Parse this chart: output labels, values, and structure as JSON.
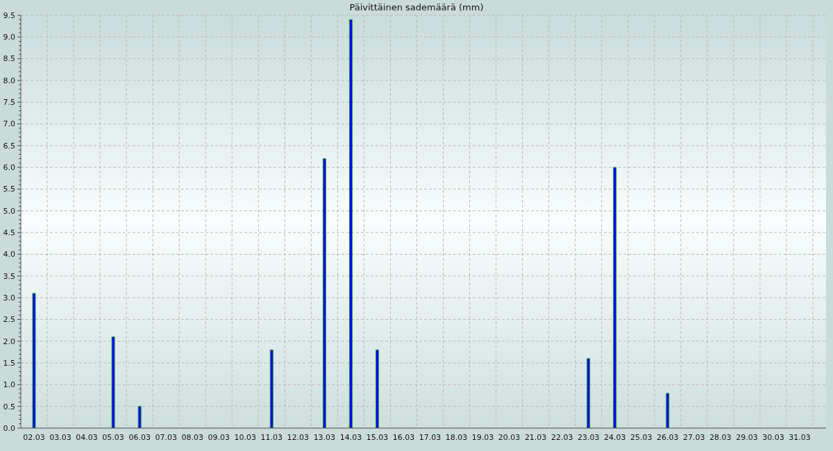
{
  "chart_data": {
    "type": "bar",
    "title": "Päivittäinen sademäärä (mm)",
    "categories": [
      "02.03",
      "03.03",
      "04.03",
      "05.03",
      "06.03",
      "07.03",
      "08.03",
      "09.03",
      "10.03",
      "11.03",
      "12.03",
      "13.03",
      "14.03",
      "15.03",
      "16.03",
      "17.03",
      "18.03",
      "19.03",
      "20.03",
      "21.03",
      "22.03",
      "23.03",
      "24.03",
      "25.03",
      "26.03",
      "27.03",
      "28.03",
      "29.03",
      "30.03",
      "31.03"
    ],
    "values": [
      3.1,
      0,
      0,
      2.1,
      0.5,
      0,
      0,
      0,
      0,
      1.8,
      0,
      6.2,
      9.4,
      1.8,
      0,
      0,
      0,
      0,
      0,
      0,
      0,
      1.6,
      6.0,
      0,
      0.8,
      0,
      0,
      0,
      0,
      0
    ],
    "color": "#0000ff",
    "ylim": [
      0,
      9.5
    ],
    "yticks": [
      {
        "value": 0,
        "label": "0.0"
      },
      {
        "value": 0.1,
        "label": null
      },
      {
        "value": 0.2,
        "label": null
      },
      {
        "value": 0.3,
        "label": null
      },
      {
        "value": 0.4,
        "label": null
      },
      {
        "value": 0.5,
        "label": "0.5"
      },
      {
        "value": 0.6,
        "label": null
      },
      {
        "value": 0.7,
        "label": null
      },
      {
        "value": 0.8,
        "label": null
      },
      {
        "value": 0.9,
        "label": null
      },
      {
        "value": 1,
        "label": "1.0"
      },
      {
        "value": 1.1,
        "label": null
      },
      {
        "value": 1.2,
        "label": null
      },
      {
        "value": 1.3,
        "label": null
      },
      {
        "value": 1.4,
        "label": null
      },
      {
        "value": 1.5,
        "label": "1.5"
      },
      {
        "value": 1.6,
        "label": null
      },
      {
        "value": 1.7,
        "label": null
      },
      {
        "value": 1.8,
        "label": null
      },
      {
        "value": 1.9,
        "label": null
      },
      {
        "value": 2,
        "label": "2.0"
      },
      {
        "value": 2.1,
        "label": null
      },
      {
        "value": 2.2,
        "label": null
      },
      {
        "value": 2.3,
        "label": null
      },
      {
        "value": 2.4,
        "label": null
      },
      {
        "value": 2.5,
        "label": "2.5"
      },
      {
        "value": 2.6,
        "label": null
      },
      {
        "value": 2.7,
        "label": null
      },
      {
        "value": 2.8,
        "label": null
      },
      {
        "value": 2.9,
        "label": null
      },
      {
        "value": 3,
        "label": "3.0"
      },
      {
        "value": 3.1,
        "label": null
      },
      {
        "value": 3.2,
        "label": null
      },
      {
        "value": 3.3,
        "label": null
      },
      {
        "value": 3.4,
        "label": null
      },
      {
        "value": 3.5,
        "label": "3.5"
      },
      {
        "value": 3.6,
        "label": null
      },
      {
        "value": 3.7,
        "label": null
      },
      {
        "value": 3.8,
        "label": null
      },
      {
        "value": 3.9,
        "label": null
      },
      {
        "value": 4,
        "label": "4.0"
      },
      {
        "value": 4.1,
        "label": null
      },
      {
        "value": 4.2,
        "label": null
      },
      {
        "value": 4.3,
        "label": null
      },
      {
        "value": 4.4,
        "label": null
      },
      {
        "value": 4.5,
        "label": "4.5"
      },
      {
        "value": 4.6,
        "label": null
      },
      {
        "value": 4.7,
        "label": null
      },
      {
        "value": 4.8,
        "label": null
      },
      {
        "value": 4.9,
        "label": null
      },
      {
        "value": 5,
        "label": "5.0"
      },
      {
        "value": 5.1,
        "label": null
      },
      {
        "value": 5.2,
        "label": null
      },
      {
        "value": 5.3,
        "label": null
      },
      {
        "value": 5.4,
        "label": null
      },
      {
        "value": 5.5,
        "label": "5.5"
      },
      {
        "value": 5.6,
        "label": null
      },
      {
        "value": 5.7,
        "label": null
      },
      {
        "value": 5.8,
        "label": null
      },
      {
        "value": 5.9,
        "label": null
      },
      {
        "value": 6,
        "label": "6.0"
      },
      {
        "value": 6.1,
        "label": null
      },
      {
        "value": 6.2,
        "label": null
      },
      {
        "value": 6.3,
        "label": null
      },
      {
        "value": 6.4,
        "label": null
      },
      {
        "value": 6.5,
        "label": "6.5"
      },
      {
        "value": 6.6,
        "label": null
      },
      {
        "value": 6.7,
        "label": null
      },
      {
        "value": 6.8,
        "label": null
      },
      {
        "value": 6.9,
        "label": null
      },
      {
        "value": 7,
        "label": "7.0"
      },
      {
        "value": 7.1,
        "label": null
      },
      {
        "value": 7.2,
        "label": null
      },
      {
        "value": 7.3,
        "label": null
      },
      {
        "value": 7.4,
        "label": null
      },
      {
        "value": 7.5,
        "label": "7.5"
      },
      {
        "value": 7.6,
        "label": null
      },
      {
        "value": 7.7,
        "label": null
      },
      {
        "value": 7.8,
        "label": null
      },
      {
        "value": 7.9,
        "label": null
      },
      {
        "value": 8,
        "label": "8.0"
      },
      {
        "value": 8.1,
        "label": null
      },
      {
        "value": 8.2,
        "label": null
      },
      {
        "value": 8.3,
        "label": null
      },
      {
        "value": 8.4,
        "label": null
      },
      {
        "value": 8.5,
        "label": "8.5"
      },
      {
        "value": 8.6,
        "label": null
      },
      {
        "value": 8.7,
        "label": null
      },
      {
        "value": 8.8,
        "label": null
      },
      {
        "value": 8.9,
        "label": null
      },
      {
        "value": 9,
        "label": "9.0"
      },
      {
        "value": 9.1,
        "label": null
      },
      {
        "value": 9.2,
        "label": null
      },
      {
        "value": 9.3,
        "label": null
      },
      {
        "value": 9.4,
        "label": null
      },
      {
        "value": 9.5,
        "label": "9.5"
      }
    ],
    "grid": true
  }
}
